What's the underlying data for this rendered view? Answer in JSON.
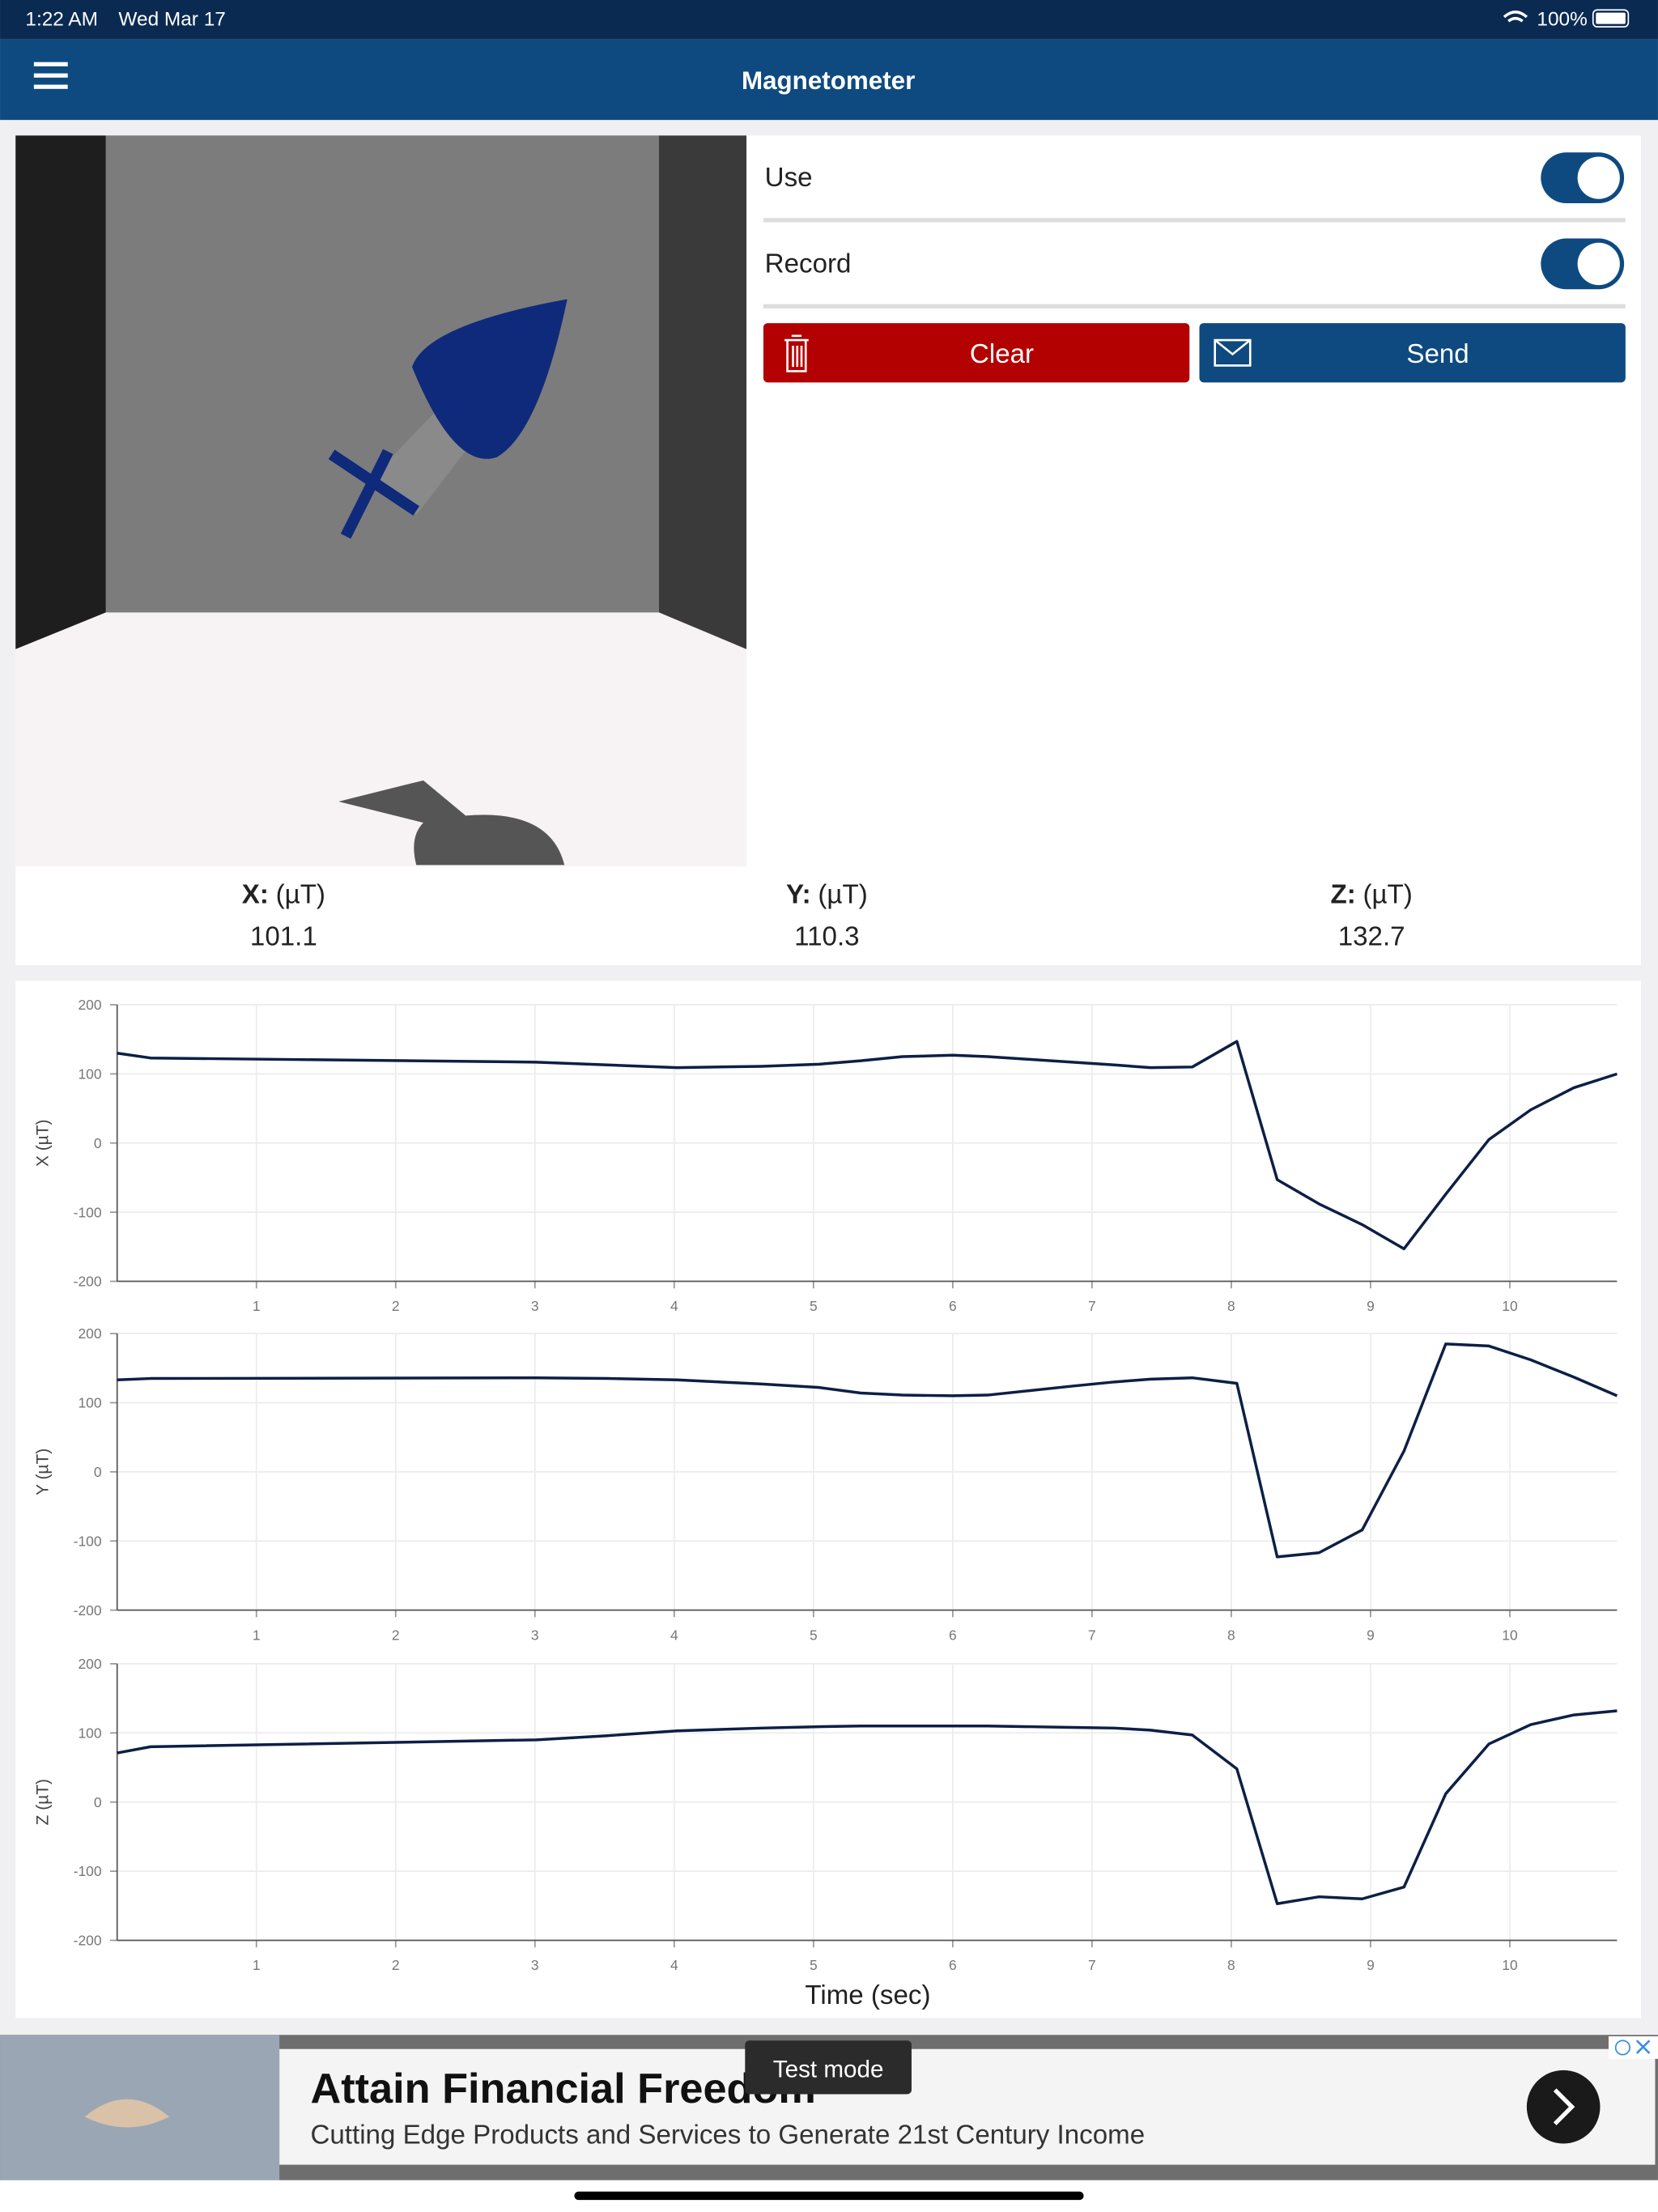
{
  "status_bar": {
    "time": "1:22 AM",
    "date": "Wed Mar 17",
    "battery": "100%"
  },
  "header": {
    "title": "Magnetometer"
  },
  "controls": {
    "use": "Use",
    "record": "Record",
    "clear": "Clear",
    "send": "Send"
  },
  "readings": [
    {
      "axis": "X:",
      "unit": "(µT)",
      "value": 101.1
    },
    {
      "axis": "Y:",
      "unit": "(µT)",
      "value": 110.3
    },
    {
      "axis": "Z:",
      "unit": "(µT)",
      "value": 132.7
    }
  ],
  "chart_data": [
    {
      "type": "line",
      "y_label": "X (µT)",
      "color": "#0d1f45",
      "grid": true,
      "xlim": [
        0,
        10.77
      ],
      "ylim": [
        -200,
        200
      ],
      "xticks": [
        1,
        2,
        3,
        4,
        5,
        6,
        7,
        8,
        9,
        10
      ],
      "yticks": [
        -200,
        -100,
        0,
        100,
        200
      ],
      "x": [
        0,
        0.24,
        3.01,
        3.52,
        4.02,
        4.63,
        5.04,
        5.34,
        5.64,
        6.0,
        6.25,
        6.86,
        7.16,
        7.42,
        7.72,
        8.04,
        8.33,
        8.63,
        8.94,
        9.24,
        9.54,
        9.85,
        10.15,
        10.46,
        10.77
      ],
      "values": [
        130,
        123,
        117,
        113,
        109,
        111,
        114,
        119,
        125,
        127,
        125,
        117,
        113,
        109,
        110,
        147,
        -53,
        -88,
        -118,
        -153,
        -74,
        5,
        48,
        80,
        100
      ]
    },
    {
      "type": "line",
      "y_label": "Y (µT)",
      "color": "#0d1f45",
      "grid": true,
      "xlim": [
        0,
        10.77
      ],
      "ylim": [
        -200,
        200
      ],
      "xticks": [
        1,
        2,
        3,
        4,
        5,
        6,
        7,
        8,
        9,
        10
      ],
      "yticks": [
        -200,
        -100,
        0,
        100,
        200
      ],
      "x": [
        0,
        0.24,
        3.01,
        3.52,
        4.02,
        4.63,
        5.04,
        5.34,
        5.64,
        6.0,
        6.25,
        6.86,
        7.16,
        7.42,
        7.72,
        8.04,
        8.33,
        8.63,
        8.94,
        9.24,
        9.54,
        9.85,
        10.15,
        10.46,
        10.77
      ],
      "values": [
        133,
        135,
        136,
        135,
        133,
        127,
        122,
        114,
        111,
        110,
        111,
        124,
        130,
        134,
        136,
        128,
        -123,
        -117,
        -84,
        30,
        185,
        182,
        162,
        137,
        110
      ]
    },
    {
      "type": "line",
      "y_label": "Z (µT)",
      "x_label": "Time (sec)",
      "color": "#0d1f45",
      "grid": true,
      "xlim": [
        0,
        10.77
      ],
      "ylim": [
        -200,
        200
      ],
      "xticks": [
        1,
        2,
        3,
        4,
        5,
        6,
        7,
        8,
        9,
        10
      ],
      "yticks": [
        -200,
        -100,
        0,
        100,
        200
      ],
      "x": [
        0,
        0.24,
        3.01,
        3.52,
        4.02,
        4.63,
        5.04,
        5.34,
        5.64,
        6.0,
        6.25,
        6.86,
        7.16,
        7.42,
        7.72,
        8.04,
        8.33,
        8.63,
        8.94,
        9.24,
        9.54,
        9.85,
        10.15,
        10.46,
        10.77
      ],
      "values": [
        71,
        80,
        90,
        96,
        103,
        107,
        109,
        110,
        110,
        110,
        110,
        108,
        107,
        104,
        97,
        48,
        -147,
        -137,
        -140,
        -123,
        12,
        84,
        112,
        126,
        132
      ]
    }
  ],
  "ad": {
    "title": "Attain Financial Freedom",
    "text": "Cutting Edge Products and Services to Generate 21st Century Income",
    "badge": "Test mode"
  }
}
